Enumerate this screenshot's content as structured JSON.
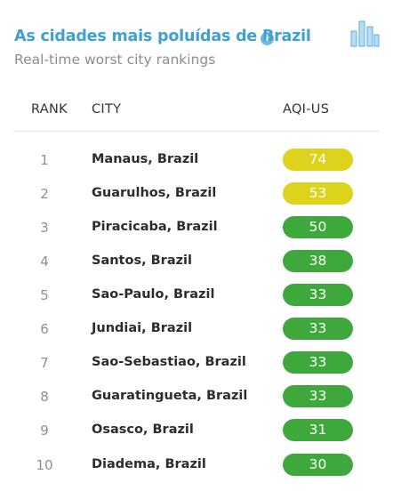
{
  "header": {
    "title": "As cidades mais poluídas de Brazil",
    "info_icon": "info-icon",
    "subtitle": "Real-time worst city rankings",
    "chart_icon": "bar-chart-icon"
  },
  "columns": {
    "rank": "RANK",
    "city": "CITY",
    "aqi": "AQI-US"
  },
  "colors": {
    "moderate": "#ddd21c",
    "good": "#3fa83c",
    "title": "#3fa0d3"
  },
  "rows": [
    {
      "rank": "1",
      "city": "Manaus, Brazil",
      "aqi": "74",
      "level": "moderate"
    },
    {
      "rank": "2",
      "city": "Guarulhos, Brazil",
      "aqi": "53",
      "level": "moderate"
    },
    {
      "rank": "3",
      "city": "Piracicaba, Brazil",
      "aqi": "50",
      "level": "good"
    },
    {
      "rank": "4",
      "city": "Santos, Brazil",
      "aqi": "38",
      "level": "good"
    },
    {
      "rank": "5",
      "city": "Sao-Paulo, Brazil",
      "aqi": "33",
      "level": "good"
    },
    {
      "rank": "6",
      "city": "Jundiai, Brazil",
      "aqi": "33",
      "level": "good"
    },
    {
      "rank": "7",
      "city": "Sao-Sebastiao, Brazil",
      "aqi": "33",
      "level": "good"
    },
    {
      "rank": "8",
      "city": "Guaratingueta, Brazil",
      "aqi": "33",
      "level": "good"
    },
    {
      "rank": "9",
      "city": "Osasco, Brazil",
      "aqi": "31",
      "level": "good"
    },
    {
      "rank": "10",
      "city": "Diadema, Brazil",
      "aqi": "30",
      "level": "good"
    }
  ]
}
